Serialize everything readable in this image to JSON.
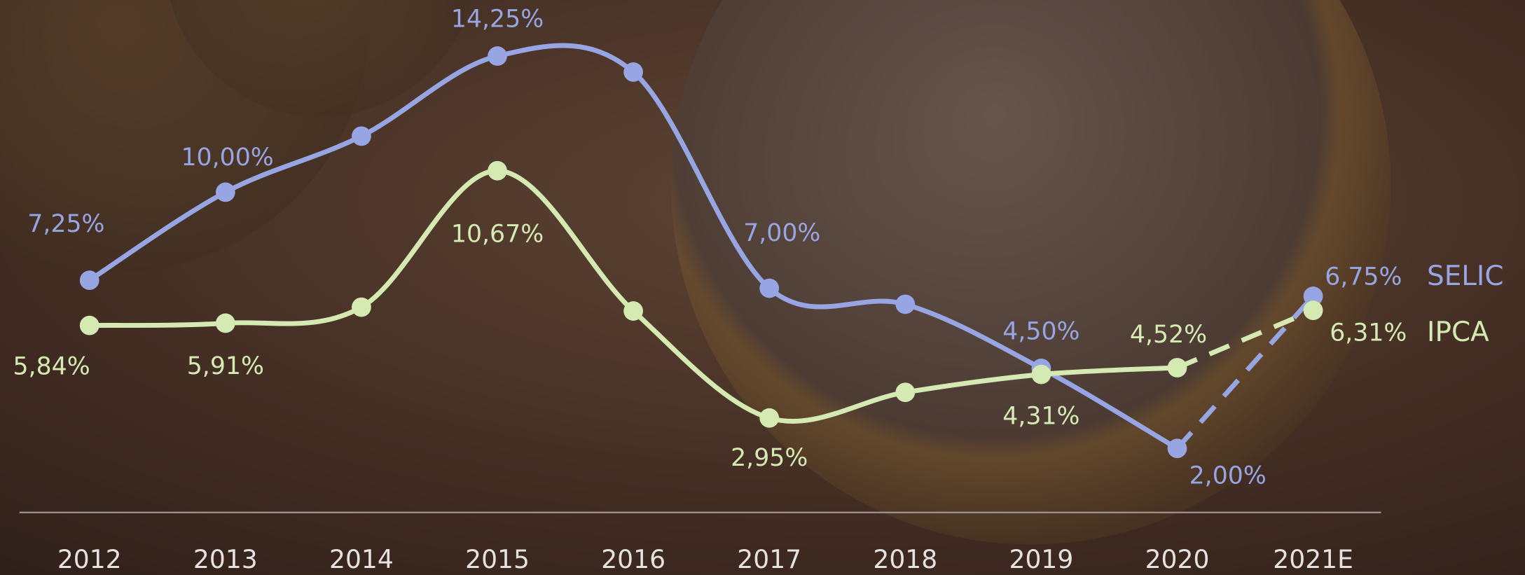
{
  "chart_data": {
    "type": "line",
    "categories": [
      "2012",
      "2013",
      "2014",
      "2015",
      "2016",
      "2017",
      "2018",
      "2019",
      "2020",
      "2021E"
    ],
    "series": [
      {
        "name": "SELIC",
        "color": "#97a5e3",
        "values": [
          7.25,
          10.0,
          11.75,
          14.25,
          13.75,
          7.0,
          6.5,
          4.5,
          2.0,
          6.75
        ],
        "value_labels": [
          "7,25%",
          "10,00%",
          null,
          "14,25%",
          null,
          "7,00%",
          null,
          "4,50%",
          "2,00%",
          "6,75%"
        ]
      },
      {
        "name": "IPCA",
        "color": "#d5eab2",
        "values": [
          5.84,
          5.91,
          6.41,
          10.67,
          6.29,
          2.95,
          3.75,
          4.31,
          4.52,
          6.31
        ],
        "value_labels": [
          "5,84%",
          "5,91%",
          null,
          "10,67%",
          null,
          "2,95%",
          null,
          "4,31%",
          "4,52%",
          "6,31%"
        ]
      }
    ],
    "ylim": [
      0,
      16
    ]
  }
}
